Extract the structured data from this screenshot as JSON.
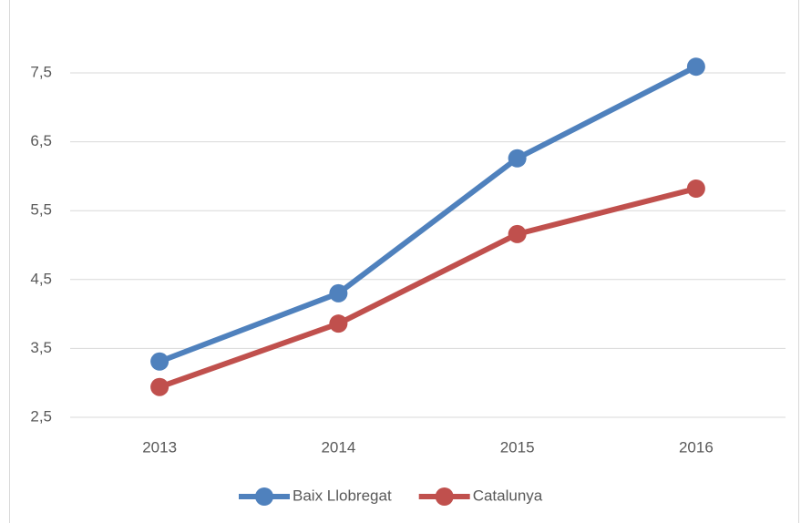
{
  "chart_data": {
    "type": "line",
    "categories": [
      "2013",
      "2014",
      "2015",
      "2016"
    ],
    "series": [
      {
        "name": "Baix Llobregat",
        "color": "#4f81bd",
        "values": [
          3.31,
          4.3,
          6.26,
          7.59
        ]
      },
      {
        "name": "Catalunya",
        "color": "#c0504d",
        "values": [
          2.94,
          3.86,
          5.16,
          5.82
        ]
      }
    ],
    "ylim": [
      2.5,
      8.5
    ],
    "yticks": [
      {
        "value": 2.5,
        "label": "2,5"
      },
      {
        "value": 3.5,
        "label": "3,5"
      },
      {
        "value": 4.5,
        "label": "4,5"
      },
      {
        "value": 5.5,
        "label": "5,5"
      },
      {
        "value": 6.5,
        "label": "6,5"
      },
      {
        "value": 7.5,
        "label": "7,5"
      }
    ],
    "grid": true,
    "legend": "bottom"
  }
}
